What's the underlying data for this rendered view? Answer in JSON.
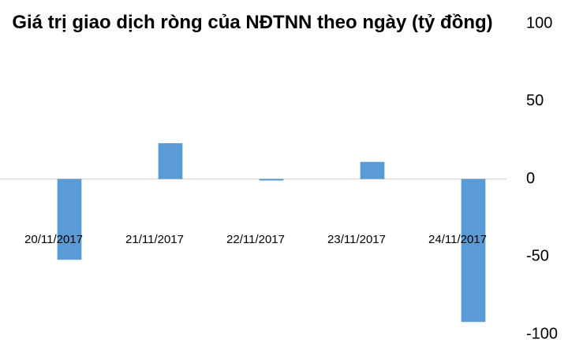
{
  "chart_data": {
    "type": "bar",
    "title": "Giá trị giao dịch ròng của NĐTNN theo ngày (tỷ đồng)",
    "categories": [
      "20/11/2017",
      "21/11/2017",
      "22/11/2017",
      "23/11/2017",
      "24/11/2017"
    ],
    "values": [
      -52,
      23,
      -1,
      11,
      -92
    ],
    "color": "#5b9bd5",
    "ylim": [
      -100,
      100
    ],
    "yticks": [
      100,
      50,
      0,
      -50,
      -100
    ],
    "grid": false
  }
}
